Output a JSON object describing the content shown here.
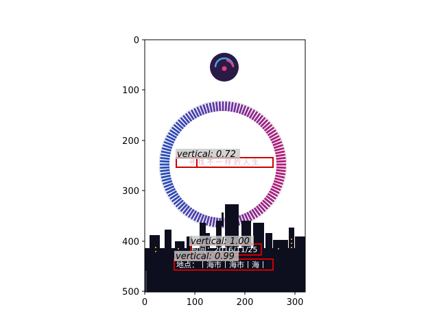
{
  "axes": {
    "x_ticks": [
      "0",
      "100",
      "200",
      "300"
    ],
    "y_ticks": [
      "0",
      "100",
      "200",
      "300",
      "400",
      "500"
    ]
  },
  "image": {
    "faint_text": "寻 找 不 一 样 的 人 生",
    "time_text": "时间：2016/11/25",
    "place_text": "地点：丨海市丨海市丨海丨",
    "colors": {
      "background": "#ffffff",
      "ring_start": "#2b4fb8",
      "ring_mid": "#6a3aa3",
      "ring_end": "#b0207a",
      "city": "#0d0f1f",
      "window_light": "#e0902a",
      "badge": "#2b1a45"
    }
  },
  "detections": [
    {
      "label": "vertical: 0.72",
      "score": 0.72
    },
    {
      "label": "vertical: 1.00",
      "score": 1.0
    },
    {
      "label": "vertical: 0.99",
      "score": 0.99
    }
  ]
}
